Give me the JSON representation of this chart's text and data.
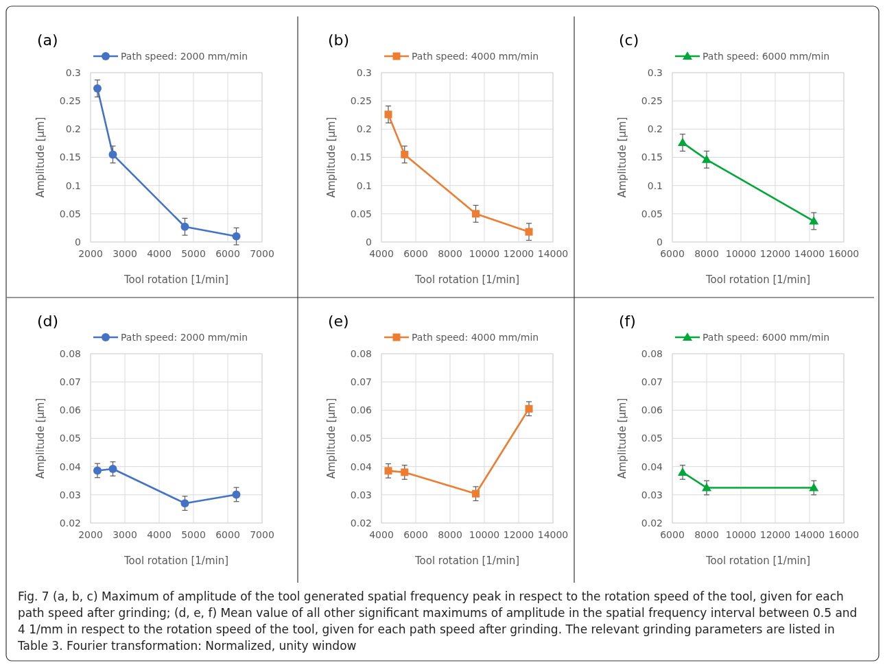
{
  "chart_data": [
    {
      "type": "line",
      "title": "(a)",
      "xlabel": "Tool rotation [1/min]",
      "ylabel": "Amplitude [µm]",
      "legend": "top",
      "grid": true,
      "marker": "circle",
      "line_style": "solid",
      "xlim": [
        2000,
        7000
      ],
      "xticks": [
        2000,
        3000,
        4000,
        5000,
        6000,
        7000
      ],
      "ylim": [
        0,
        0.3
      ],
      "yticks": [
        0,
        0.05,
        0.1,
        0.15,
        0.2,
        0.25,
        0.3
      ],
      "series": [
        {
          "name": "Path speed: 2000 mm/min",
          "color": "#4472c4",
          "x": [
            2200,
            2650,
            4750,
            6250
          ],
          "values": [
            0.272,
            0.155,
            0.027,
            0.01
          ],
          "errors": [
            0.015,
            0.015,
            0.015,
            0.015
          ]
        }
      ],
      "annotations": [
        "Fig. 7 (a, b, c) Maximum of amplitude of the tool generated spatial frequency peak in respect to the rotation speed of the tool, given for each path speed after grinding; (d, e, f) Mean value of all other significant maximums of amplitude in the spatial frequency interval between 0.5 and 4 1/mm in respect to the rotation speed of the tool, given for each path speed after grinding. The relevant grinding parameters are listed in Table 3. Fourier transformation: Normalized, unity window"
      ]
    },
    {
      "type": "line",
      "title": "(b)",
      "xlabel": "Tool rotation [1/min]",
      "ylabel": "Amplitude [µm]",
      "legend": "top",
      "grid": true,
      "marker": "square",
      "line_style": "solid",
      "xlim": [
        4000,
        14000
      ],
      "xticks": [
        4000,
        6000,
        8000,
        10000,
        12000,
        14000
      ],
      "ylim": [
        0,
        0.3
      ],
      "yticks": [
        0,
        0.05,
        0.1,
        0.15,
        0.2,
        0.25,
        0.3
      ],
      "series": [
        {
          "name": "Path speed: 4000 mm/min",
          "color": "#ed7d31",
          "x": [
            4400,
            5350,
            9500,
            12600
          ],
          "values": [
            0.226,
            0.155,
            0.05,
            0.018
          ],
          "errors": [
            0.015,
            0.015,
            0.015,
            0.015
          ]
        }
      ]
    },
    {
      "type": "line",
      "title": "(c)",
      "xlabel": "Tool rotation [1/min]",
      "ylabel": "Amplitude [µm]",
      "legend": "top",
      "grid": true,
      "marker": "triangle",
      "line_style": "solid",
      "xlim": [
        6000,
        16000
      ],
      "xticks": [
        6000,
        8000,
        10000,
        12000,
        14000,
        16000
      ],
      "ylim": [
        0,
        0.3
      ],
      "yticks": [
        0,
        0.05,
        0.1,
        0.15,
        0.2,
        0.25,
        0.3
      ],
      "series": [
        {
          "name": "Path speed: 6000 mm/min",
          "color": "#00a838",
          "x": [
            6600,
            8000,
            14250
          ],
          "values": [
            0.176,
            0.146,
            0.037
          ],
          "errors": [
            0.015,
            0.015,
            0.015
          ]
        }
      ]
    },
    {
      "type": "line",
      "title": "(d)",
      "xlabel": "Tool rotation [1/min]",
      "ylabel": "Amplitude [µm]",
      "legend": "top",
      "grid": true,
      "marker": "circle",
      "line_style": "solid",
      "xlim": [
        2000,
        7000
      ],
      "xticks": [
        2000,
        3000,
        4000,
        5000,
        6000,
        7000
      ],
      "ylim": [
        0.02,
        0.08
      ],
      "yticks": [
        0.02,
        0.03,
        0.04,
        0.05,
        0.06,
        0.07,
        0.08
      ],
      "series": [
        {
          "name": "Path speed: 2000 mm/min",
          "color": "#4472c4",
          "x": [
            2200,
            2650,
            4750,
            6250
          ],
          "values": [
            0.0386,
            0.0392,
            0.027,
            0.0301
          ],
          "errors": [
            0.0025,
            0.0025,
            0.0025,
            0.0025
          ]
        }
      ]
    },
    {
      "type": "line",
      "title": "(e)",
      "xlabel": "Tool rotation [1/min]",
      "ylabel": "Amplitude [µm]",
      "legend": "top",
      "grid": true,
      "marker": "square",
      "line_style": "solid",
      "xlim": [
        4000,
        14000
      ],
      "xticks": [
        4000,
        6000,
        8000,
        10000,
        12000,
        14000
      ],
      "ylim": [
        0.02,
        0.08
      ],
      "yticks": [
        0.02,
        0.03,
        0.04,
        0.05,
        0.06,
        0.07,
        0.08
      ],
      "series": [
        {
          "name": "Path speed: 4000 mm/min",
          "color": "#ed7d31",
          "x": [
            4400,
            5350,
            9500,
            12600
          ],
          "values": [
            0.0385,
            0.038,
            0.0304,
            0.0605
          ],
          "errors": [
            0.0025,
            0.0025,
            0.0025,
            0.0025
          ]
        }
      ]
    },
    {
      "type": "line",
      "title": "(f)",
      "xlabel": "Tool rotation [1/min]",
      "ylabel": "Amplitude [µm]",
      "legend": "top",
      "grid": true,
      "marker": "triangle",
      "line_style": "solid",
      "xlim": [
        6000,
        16000
      ],
      "xticks": [
        6000,
        8000,
        10000,
        12000,
        14000,
        16000
      ],
      "ylim": [
        0.02,
        0.08
      ],
      "yticks": [
        0.02,
        0.03,
        0.04,
        0.05,
        0.06,
        0.07,
        0.08
      ],
      "series": [
        {
          "name": "Path speed: 6000 mm/min",
          "color": "#00a838",
          "x": [
            6600,
            8000,
            14250
          ],
          "values": [
            0.038,
            0.0325,
            0.0325
          ],
          "errors": [
            0.0025,
            0.0025,
            0.0025
          ]
        }
      ]
    }
  ]
}
